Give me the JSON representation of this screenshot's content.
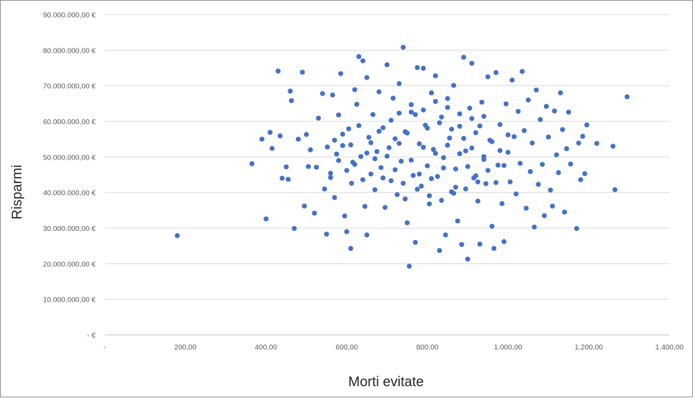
{
  "chart_data": {
    "type": "scatter",
    "title": "",
    "xlabel": "Morti evitate",
    "ylabel": "Risparmi",
    "xlim": [
      0,
      1400
    ],
    "ylim": [
      0,
      90000000
    ],
    "grid": "horizontal",
    "legend": "none",
    "colors": {
      "marker": "#4472C4",
      "grid": "#d9d9d9",
      "axis": "#bfbfbf"
    },
    "x_ticks": [
      {
        "value": 0,
        "label": "-"
      },
      {
        "value": 200,
        "label": "200,00"
      },
      {
        "value": 400,
        "label": "400,00"
      },
      {
        "value": 600,
        "label": "600,00"
      },
      {
        "value": 800,
        "label": "800,00"
      },
      {
        "value": 1000,
        "label": "1.000,00"
      },
      {
        "value": 1200,
        "label": "1.200,00"
      },
      {
        "value": 1400,
        "label": "1.400,00"
      }
    ],
    "y_ticks": [
      {
        "value": 0,
        "label": "-  €"
      },
      {
        "value": 10000000,
        "label": "10.000.000,00 €"
      },
      {
        "value": 20000000,
        "label": "20.000.000,00 €"
      },
      {
        "value": 30000000,
        "label": "30.000.000,00 €"
      },
      {
        "value": 40000000,
        "label": "40.000.000,00 €"
      },
      {
        "value": 50000000,
        "label": "50.000.000,00 €"
      },
      {
        "value": 60000000,
        "label": "60.000.000,00 €"
      },
      {
        "value": 70000000,
        "label": "70.000.000,00 €"
      },
      {
        "value": 80000000,
        "label": "80.000.000,00 €"
      },
      {
        "value": 90000000,
        "label": "90.000.000,00 €"
      }
    ],
    "points": [
      [
        180,
        27900000
      ],
      [
        365,
        48100000
      ],
      [
        390,
        55000000
      ],
      [
        400,
        32600000
      ],
      [
        410,
        56900000
      ],
      [
        415,
        52400000
      ],
      [
        430,
        74100000
      ],
      [
        435,
        55900000
      ],
      [
        440,
        44000000
      ],
      [
        450,
        47200000
      ],
      [
        455,
        43700000
      ],
      [
        460,
        68500000
      ],
      [
        463,
        65800000
      ],
      [
        470,
        29900000
      ],
      [
        480,
        55000000
      ],
      [
        490,
        73800000
      ],
      [
        495,
        36200000
      ],
      [
        500,
        56300000
      ],
      [
        505,
        47300000
      ],
      [
        510,
        52000000
      ],
      [
        520,
        34200000
      ],
      [
        525,
        47100000
      ],
      [
        530,
        60900000
      ],
      [
        540,
        67800000
      ],
      [
        545,
        41000000
      ],
      [
        550,
        28300000
      ],
      [
        552,
        52800000
      ],
      [
        560,
        44200000
      ],
      [
        565,
        67400000
      ],
      [
        570,
        38600000
      ],
      [
        575,
        50800000
      ],
      [
        580,
        61800000
      ],
      [
        585,
        73400000
      ],
      [
        590,
        53200000
      ],
      [
        595,
        33400000
      ],
      [
        600,
        29000000
      ],
      [
        605,
        57900000
      ],
      [
        610,
        24300000
      ],
      [
        612,
        42600000
      ],
      [
        615,
        48500000
      ],
      [
        620,
        68900000
      ],
      [
        625,
        64800000
      ],
      [
        630,
        78200000
      ],
      [
        635,
        50100000
      ],
      [
        640,
        77000000
      ],
      [
        645,
        36100000
      ],
      [
        650,
        72300000
      ],
      [
        650,
        28100000
      ],
      [
        655,
        55500000
      ],
      [
        660,
        45200000
      ],
      [
        665,
        61900000
      ],
      [
        670,
        40800000
      ],
      [
        675,
        51500000
      ],
      [
        680,
        68300000
      ],
      [
        685,
        47000000
      ],
      [
        690,
        58200000
      ],
      [
        695,
        35800000
      ],
      [
        700,
        75900000
      ],
      [
        705,
        52600000
      ],
      [
        710,
        43300000
      ],
      [
        715,
        66500000
      ],
      [
        720,
        55100000
      ],
      [
        725,
        39400000
      ],
      [
        730,
        70600000
      ],
      [
        735,
        48800000
      ],
      [
        740,
        80800000
      ],
      [
        745,
        57100000
      ],
      [
        750,
        31500000
      ],
      [
        755,
        19300000
      ],
      [
        760,
        62600000
      ],
      [
        765,
        44800000
      ],
      [
        770,
        26000000
      ],
      [
        775,
        75100000
      ],
      [
        780,
        53700000
      ],
      [
        785,
        41800000
      ],
      [
        790,
        74900000
      ],
      [
        795,
        58900000
      ],
      [
        800,
        47500000
      ],
      [
        805,
        36800000
      ],
      [
        810,
        68000000
      ],
      [
        815,
        52100000
      ],
      [
        820,
        72800000
      ],
      [
        825,
        44500000
      ],
      [
        830,
        23700000
      ],
      [
        835,
        61200000
      ],
      [
        840,
        49800000
      ],
      [
        845,
        28100000
      ],
      [
        850,
        66400000
      ],
      [
        855,
        55300000
      ],
      [
        860,
        40200000
      ],
      [
        865,
        70100000
      ],
      [
        870,
        46600000
      ],
      [
        875,
        32000000
      ],
      [
        880,
        58600000
      ],
      [
        885,
        25400000
      ],
      [
        890,
        78000000
      ],
      [
        895,
        51700000
      ],
      [
        900,
        21300000
      ],
      [
        905,
        63700000
      ],
      [
        910,
        76300000
      ],
      [
        915,
        44100000
      ],
      [
        920,
        56800000
      ],
      [
        925,
        37600000
      ],
      [
        930,
        25500000
      ],
      [
        935,
        65400000
      ],
      [
        940,
        49300000
      ],
      [
        945,
        42500000
      ],
      [
        950,
        72500000
      ],
      [
        955,
        54700000
      ],
      [
        960,
        30500000
      ],
      [
        965,
        24300000
      ],
      [
        970,
        73700000
      ],
      [
        975,
        47700000
      ],
      [
        980,
        59100000
      ],
      [
        985,
        36900000
      ],
      [
        990,
        26200000
      ],
      [
        995,
        64900000
      ],
      [
        1000,
        51300000
      ],
      [
        1005,
        43000000
      ],
      [
        1010,
        71600000
      ],
      [
        1015,
        55700000
      ],
      [
        1020,
        39600000
      ],
      [
        1025,
        62800000
      ],
      [
        1030,
        48200000
      ],
      [
        1035,
        74000000
      ],
      [
        1040,
        57400000
      ],
      [
        1045,
        35600000
      ],
      [
        1050,
        66000000
      ],
      [
        1055,
        45900000
      ],
      [
        1060,
        53900000
      ],
      [
        1065,
        30300000
      ],
      [
        1070,
        68800000
      ],
      [
        1075,
        42300000
      ],
      [
        1080,
        60500000
      ],
      [
        1085,
        47900000
      ],
      [
        1090,
        33500000
      ],
      [
        1095,
        64200000
      ],
      [
        1100,
        55600000
      ],
      [
        1105,
        40700000
      ],
      [
        1110,
        36200000
      ],
      [
        1115,
        62900000
      ],
      [
        1120,
        50600000
      ],
      [
        1125,
        45600000
      ],
      [
        1130,
        68000000
      ],
      [
        1135,
        57700000
      ],
      [
        1140,
        34500000
      ],
      [
        1145,
        52300000
      ],
      [
        1150,
        62600000
      ],
      [
        1155,
        48000000
      ],
      [
        1170,
        29900000
      ],
      [
        1175,
        53900000
      ],
      [
        1180,
        43600000
      ],
      [
        1185,
        55800000
      ],
      [
        1190,
        45300000
      ],
      [
        1195,
        59000000
      ],
      [
        1220,
        53800000
      ],
      [
        1260,
        53000000
      ],
      [
        1265,
        40800000
      ],
      [
        1295,
        66900000
      ],
      [
        660,
        54000000
      ],
      [
        670,
        49500000
      ],
      [
        680,
        57200000
      ],
      [
        690,
        44100000
      ],
      [
        700,
        50200000
      ],
      [
        710,
        60300000
      ],
      [
        720,
        46400000
      ],
      [
        730,
        53800000
      ],
      [
        740,
        42600000
      ],
      [
        750,
        56700000
      ],
      [
        760,
        49100000
      ],
      [
        770,
        61900000
      ],
      [
        780,
        45200000
      ],
      [
        790,
        52700000
      ],
      [
        800,
        58100000
      ],
      [
        810,
        43900000
      ],
      [
        820,
        51000000
      ],
      [
        830,
        59600000
      ],
      [
        840,
        46900000
      ],
      [
        850,
        53300000
      ],
      [
        860,
        57800000
      ],
      [
        870,
        41500000
      ],
      [
        880,
        50900000
      ],
      [
        890,
        55200000
      ],
      [
        900,
        47300000
      ],
      [
        910,
        52500000
      ],
      [
        920,
        44700000
      ],
      [
        930,
        58700000
      ],
      [
        940,
        50100000
      ],
      [
        950,
        46200000
      ],
      [
        960,
        54300000
      ],
      [
        970,
        42800000
      ],
      [
        980,
        51800000
      ],
      [
        990,
        47600000
      ],
      [
        1000,
        56200000
      ],
      [
        610,
        53400000
      ],
      [
        620,
        47900000
      ],
      [
        630,
        58800000
      ],
      [
        640,
        43600000
      ],
      [
        650,
        51100000
      ],
      [
        600,
        46200000
      ],
      [
        590,
        56400000
      ],
      [
        580,
        49000000
      ],
      [
        570,
        54700000
      ],
      [
        560,
        45400000
      ],
      [
        730,
        62300000
      ],
      [
        745,
        38200000
      ],
      [
        760,
        64700000
      ],
      [
        775,
        40900000
      ],
      [
        790,
        63200000
      ],
      [
        805,
        39100000
      ],
      [
        820,
        65600000
      ],
      [
        835,
        37800000
      ],
      [
        850,
        63900000
      ],
      [
        865,
        39800000
      ],
      [
        880,
        62100000
      ],
      [
        895,
        41000000
      ],
      [
        910,
        60800000
      ],
      [
        925,
        43000000
      ],
      [
        940,
        61400000
      ]
    ]
  }
}
